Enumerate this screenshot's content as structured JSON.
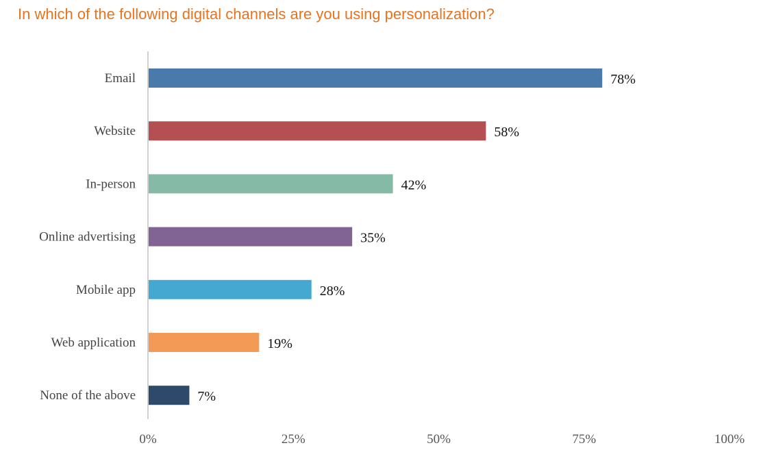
{
  "chart_data": {
    "type": "bar",
    "orientation": "horizontal",
    "title": "In which of the following digital channels are you using personalization?",
    "categories": [
      "Email",
      "Website",
      "In-person",
      "Online advertising",
      "Mobile app",
      "Web application",
      "None of the above"
    ],
    "values": [
      78,
      58,
      42,
      35,
      28,
      19,
      7
    ],
    "value_labels": [
      "78%",
      "58%",
      "42%",
      "35%",
      "28%",
      "19%",
      "7%"
    ],
    "colors": [
      "#4a7aab",
      "#b55052",
      "#85baa7",
      "#816394",
      "#45a8d0",
      "#f39a57",
      "#2e4a6a"
    ],
    "xlim": [
      0,
      100
    ],
    "xticks": [
      0,
      25,
      50,
      75,
      100
    ],
    "xtick_labels": [
      "0%",
      "25%",
      "50%",
      "75%",
      "100%"
    ],
    "xlabel": "",
    "ylabel": "",
    "grid": false,
    "title_color": "#e8731f"
  }
}
